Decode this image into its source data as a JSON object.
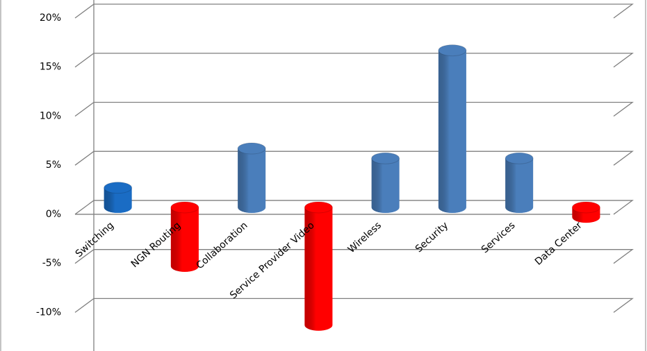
{
  "chart_data": {
    "type": "bar",
    "categories": [
      "Switching",
      "NGN Routing",
      "Collaboration",
      "Service Provider Video",
      "Wireless",
      "Security",
      "Services",
      "Data Center"
    ],
    "values": [
      2,
      -6,
      6,
      -12,
      5,
      16,
      5,
      -1
    ],
    "colors": [
      "#1a6cc4",
      "#ff0000",
      "#4a7ebb",
      "#ff0000",
      "#4a7ebb",
      "#4a7ebb",
      "#4a7ebb",
      "#ff0000"
    ],
    "ylim": [
      -14,
      20
    ],
    "yticks": [
      {
        "value": -10,
        "label": "-10%"
      },
      {
        "value": -5,
        "label": "-5%"
      },
      {
        "value": 0,
        "label": "0%"
      },
      {
        "value": 5,
        "label": "5%"
      },
      {
        "value": 10,
        "label": "10%"
      },
      {
        "value": 15,
        "label": "15%"
      },
      {
        "value": 20,
        "label": "20%"
      }
    ],
    "grid": true
  }
}
